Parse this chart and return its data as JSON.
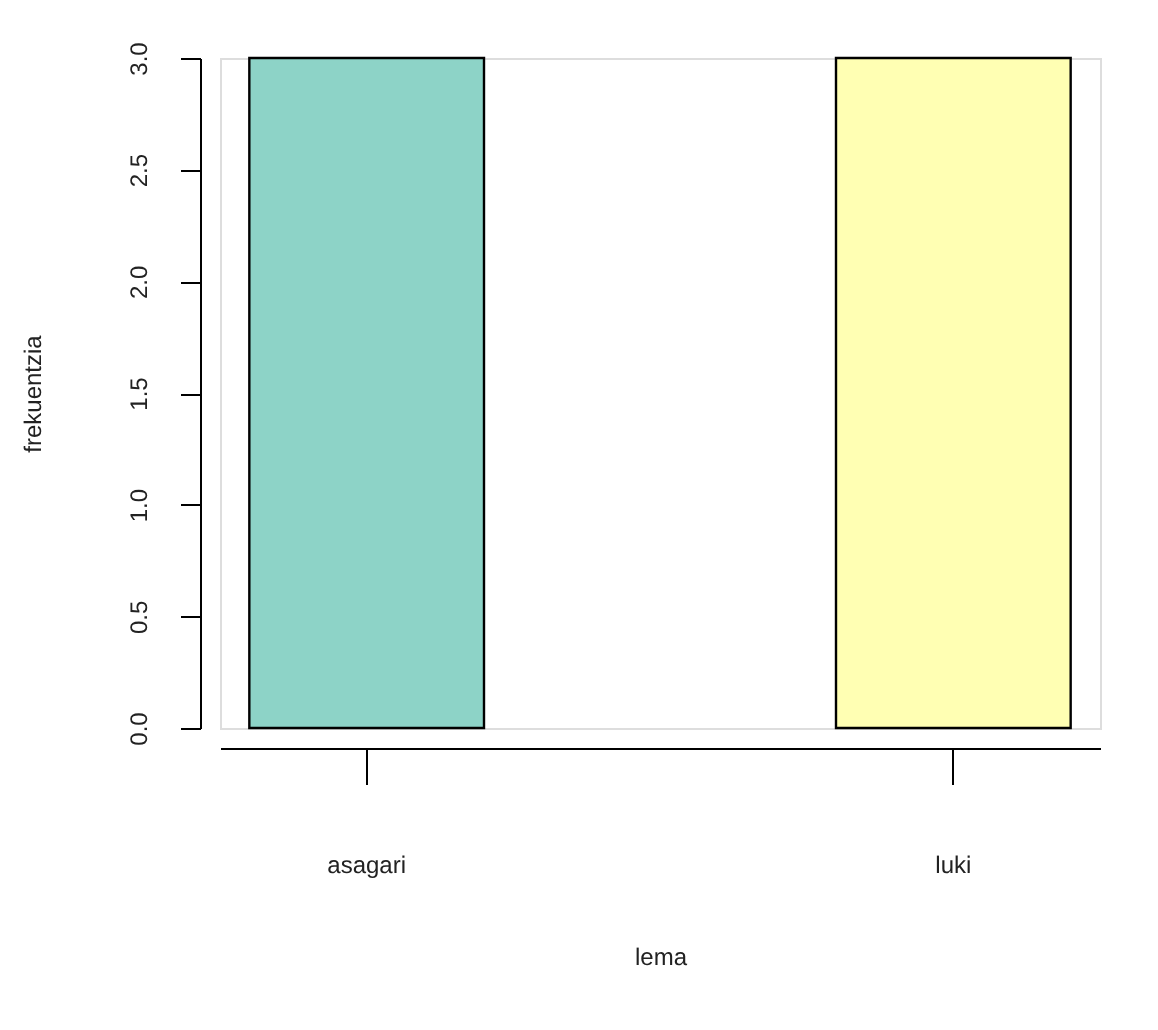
{
  "chart_data": {
    "type": "bar",
    "xlabel": "lema",
    "ylabel": "frekuentzia",
    "categories": [
      "asagari",
      "luki"
    ],
    "values": [
      3,
      3
    ],
    "colors": [
      "#8dd3c7",
      "#ffffb3"
    ],
    "ylim": [
      0,
      3
    ],
    "yticks": [
      {
        "value": 0,
        "label": "0.0"
      },
      0.5,
      {
        "value": 1,
        "label": "1.0"
      },
      1.5,
      {
        "value": 2,
        "label": "2.0"
      },
      2.5,
      {
        "value": 3,
        "label": "3.0"
      }
    ],
    "grid": false
  }
}
